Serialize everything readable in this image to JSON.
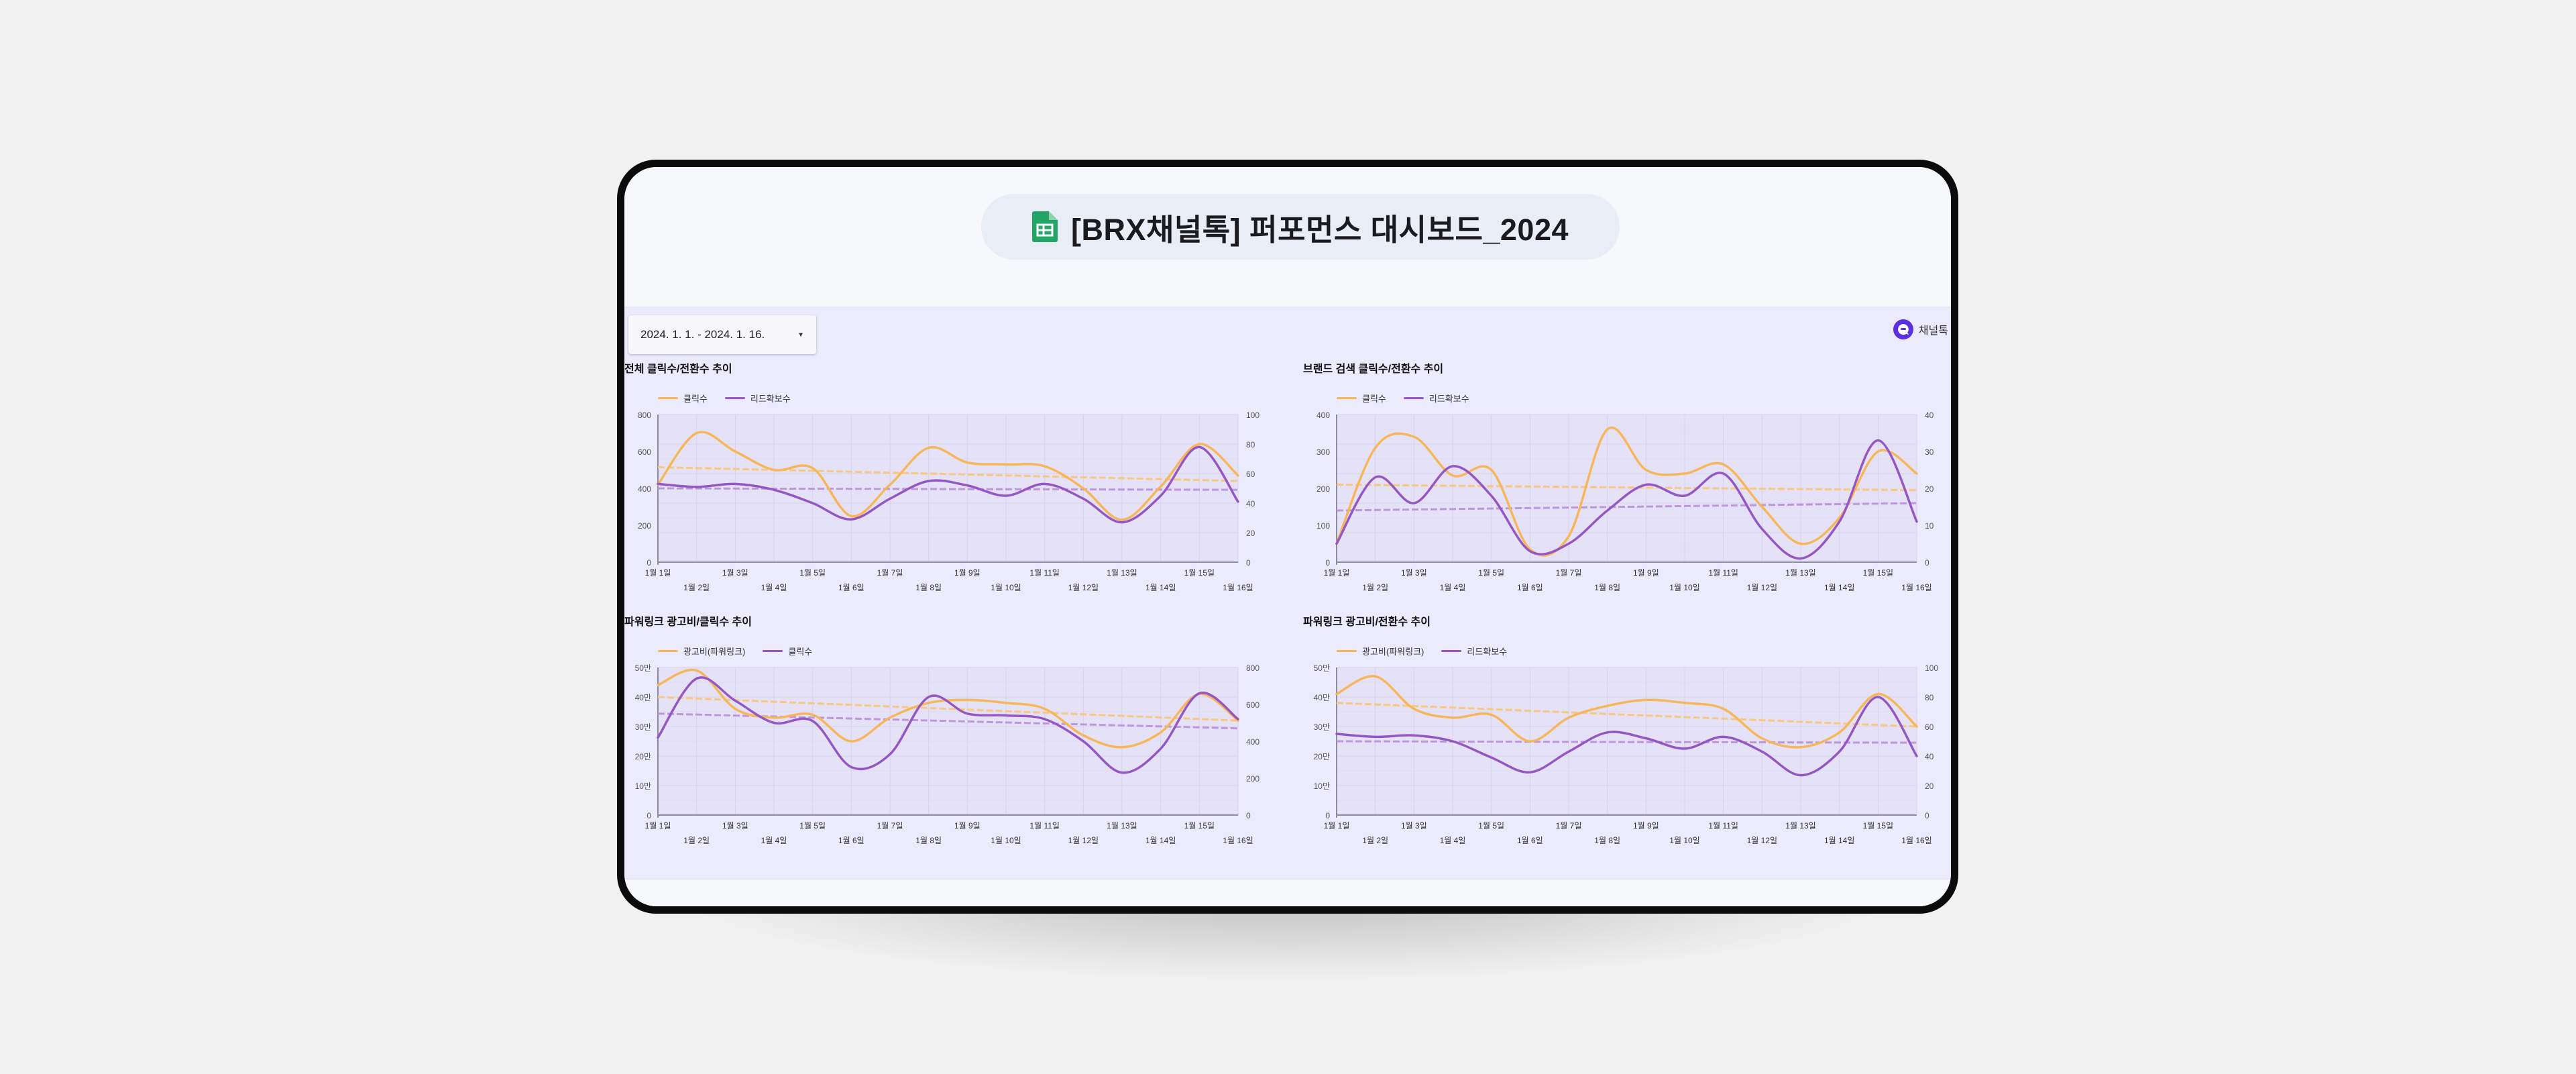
{
  "app": {
    "title": "[BRX채널톡] 퍼포먼스 대시보드_2024",
    "icon": "google-sheets-icon"
  },
  "filters": {
    "date_range": "2024. 1. 1. - 2024. 1. 16."
  },
  "brand": {
    "name": "채널톡",
    "icon": "channeltalk-logo-icon"
  },
  "colors": {
    "orange": "#f6b65a",
    "purple": "#9457c4",
    "orange_trend": "#f8c880",
    "purple_trend": "#bd96dc",
    "grid": "#d6d1ec",
    "plot_bg": "#e5e2f8"
  },
  "chart_data": [
    {
      "type": "line",
      "title": "전체 클릭수/전환수 추이",
      "categories": [
        "1월 1일",
        "1월 2일",
        "1월 3일",
        "1월 4일",
        "1월 5일",
        "1월 6일",
        "1월 7일",
        "1월 8일",
        "1월 9일",
        "1월 10일",
        "1월 11일",
        "1월 12일",
        "1월 13일",
        "1월 14일",
        "1월 15일",
        "1월 16일"
      ],
      "left_ticks": [
        "0",
        "200",
        "400",
        "600",
        "800"
      ],
      "right_ticks": [
        "0",
        "20",
        "40",
        "60",
        "80",
        "100"
      ],
      "ylim_left": [
        0,
        800
      ],
      "ylim_right": [
        0,
        100
      ],
      "trend_left": [
        515,
        440
      ],
      "trend_right": [
        50,
        49
      ],
      "series": [
        {
          "name": "클릭수",
          "axis": "left",
          "values": [
            420,
            700,
            600,
            500,
            510,
            250,
            420,
            620,
            540,
            530,
            520,
            400,
            230,
            410,
            640,
            470
          ]
        },
        {
          "name": "리드확보수",
          "axis": "right",
          "values": [
            53,
            51,
            53,
            49,
            40,
            29,
            43,
            55,
            52,
            45,
            53,
            43,
            27,
            45,
            78,
            41
          ]
        }
      ]
    },
    {
      "type": "line",
      "title": "브랜드 검색 클릭수/전환수 추이",
      "categories": [
        "1월 1일",
        "1월 2일",
        "1월 3일",
        "1월 4일",
        "1월 5일",
        "1월 6일",
        "1월 7일",
        "1월 8일",
        "1월 9일",
        "1월 10일",
        "1월 11일",
        "1월 12일",
        "1월 13일",
        "1월 14일",
        "1월 15일",
        "1월 16일"
      ],
      "left_ticks": [
        "0",
        "100",
        "200",
        "300",
        "400"
      ],
      "right_ticks": [
        "0",
        "10",
        "20",
        "30",
        "40"
      ],
      "ylim_left": [
        0,
        400
      ],
      "ylim_right": [
        0,
        40
      ],
      "trend_left": [
        210,
        195
      ],
      "trend_right": [
        14,
        16
      ],
      "series": [
        {
          "name": "클릭수",
          "axis": "left",
          "values": [
            50,
            310,
            340,
            235,
            250,
            35,
            70,
            360,
            250,
            240,
            265,
            150,
            50,
            120,
            300,
            240
          ]
        },
        {
          "name": "리드확보수",
          "axis": "right",
          "values": [
            5,
            23,
            16,
            26,
            18,
            3,
            5,
            14,
            21,
            18,
            24,
            9,
            1,
            11,
            33,
            11
          ]
        }
      ]
    },
    {
      "type": "line",
      "title": "파워링크 광고비/클릭수 추이",
      "categories": [
        "1월 1일",
        "1월 2일",
        "1월 3일",
        "1월 4일",
        "1월 5일",
        "1월 6일",
        "1월 7일",
        "1월 8일",
        "1월 9일",
        "1월 10일",
        "1월 11일",
        "1월 12일",
        "1월 13일",
        "1월 14일",
        "1월 15일",
        "1월 16일"
      ],
      "left_ticks": [
        "0",
        "10만",
        "20만",
        "30만",
        "40만",
        "50만"
      ],
      "right_ticks": [
        "0",
        "200",
        "400",
        "600",
        "800"
      ],
      "ylim_left": [
        0,
        500000
      ],
      "ylim_right": [
        0,
        800
      ],
      "trend_left": [
        400000,
        320000
      ],
      "trend_right": [
        550,
        470
      ],
      "series": [
        {
          "name": "광고비(파워링크)",
          "axis": "left",
          "values": [
            440000,
            490000,
            360000,
            330000,
            340000,
            250000,
            330000,
            380000,
            390000,
            380000,
            360000,
            270000,
            230000,
            280000,
            410000,
            320000
          ]
        },
        {
          "name": "클릭수",
          "axis": "right",
          "values": [
            420,
            740,
            620,
            500,
            510,
            260,
            330,
            640,
            550,
            540,
            520,
            400,
            230,
            360,
            660,
            520
          ]
        }
      ]
    },
    {
      "type": "line",
      "title": "파워링크 광고비/전환수 추이",
      "categories": [
        "1월 1일",
        "1월 2일",
        "1월 3일",
        "1월 4일",
        "1월 5일",
        "1월 6일",
        "1월 7일",
        "1월 8일",
        "1월 9일",
        "1월 10일",
        "1월 11일",
        "1월 12일",
        "1월 13일",
        "1월 14일",
        "1월 15일",
        "1월 16일"
      ],
      "left_ticks": [
        "0",
        "10만",
        "20만",
        "30만",
        "40만",
        "50만"
      ],
      "right_ticks": [
        "0",
        "20",
        "40",
        "60",
        "80",
        "100"
      ],
      "ylim_left": [
        0,
        500000
      ],
      "ylim_right": [
        0,
        100
      ],
      "trend_left": [
        380000,
        300000
      ],
      "trend_right": [
        50,
        49
      ],
      "series": [
        {
          "name": "광고비(파워링크)",
          "axis": "left",
          "values": [
            410000,
            470000,
            360000,
            330000,
            340000,
            250000,
            330000,
            370000,
            390000,
            380000,
            360000,
            260000,
            230000,
            280000,
            410000,
            300000
          ]
        },
        {
          "name": "리드확보수",
          "axis": "right",
          "values": [
            55,
            53,
            54,
            50,
            39,
            29,
            43,
            56,
            52,
            45,
            53,
            43,
            27,
            43,
            80,
            40
          ]
        }
      ]
    }
  ]
}
